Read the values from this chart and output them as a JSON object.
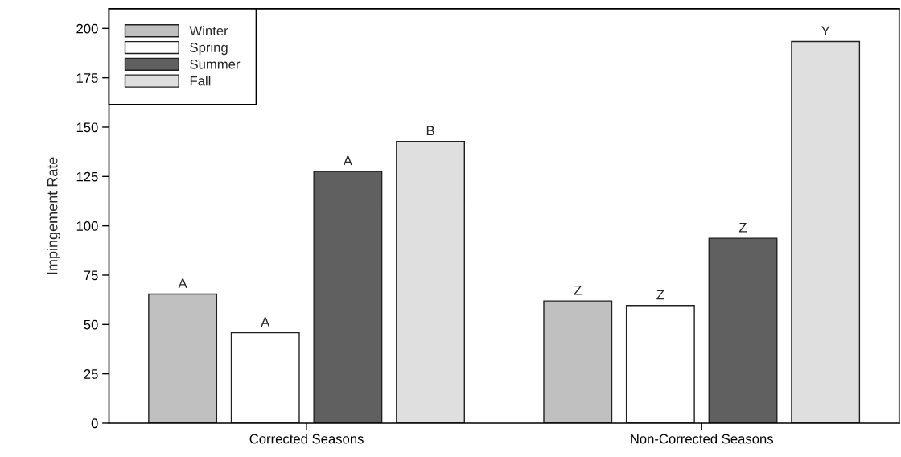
{
  "chart_data": {
    "type": "bar",
    "ylabel": "Impingement Rate",
    "categories": [
      "Corrected Seasons",
      "Non-Corrected Seasons"
    ],
    "series": [
      {
        "name": "Winter",
        "color": "#c0c0c0",
        "values": [
          65.4,
          61.9
        ],
        "value_labels": [
          "A",
          "Z"
        ]
      },
      {
        "name": "Spring",
        "color": "#ffffff",
        "values": [
          45.8,
          59.6
        ],
        "value_labels": [
          "A",
          "Z"
        ]
      },
      {
        "name": "Summer",
        "color": "#606060",
        "values": [
          127.6,
          93.7
        ],
        "value_labels": [
          "A",
          "Z"
        ]
      },
      {
        "name": "Fall",
        "color": "#dfdfdf",
        "values": [
          142.8,
          193.4
        ],
        "value_labels": [
          "B",
          "Y"
        ]
      }
    ],
    "ylim": [
      0,
      210
    ],
    "yticks": [
      0,
      25,
      50,
      75,
      100,
      125,
      150,
      175,
      200
    ],
    "grid": false,
    "legend": "top left"
  }
}
